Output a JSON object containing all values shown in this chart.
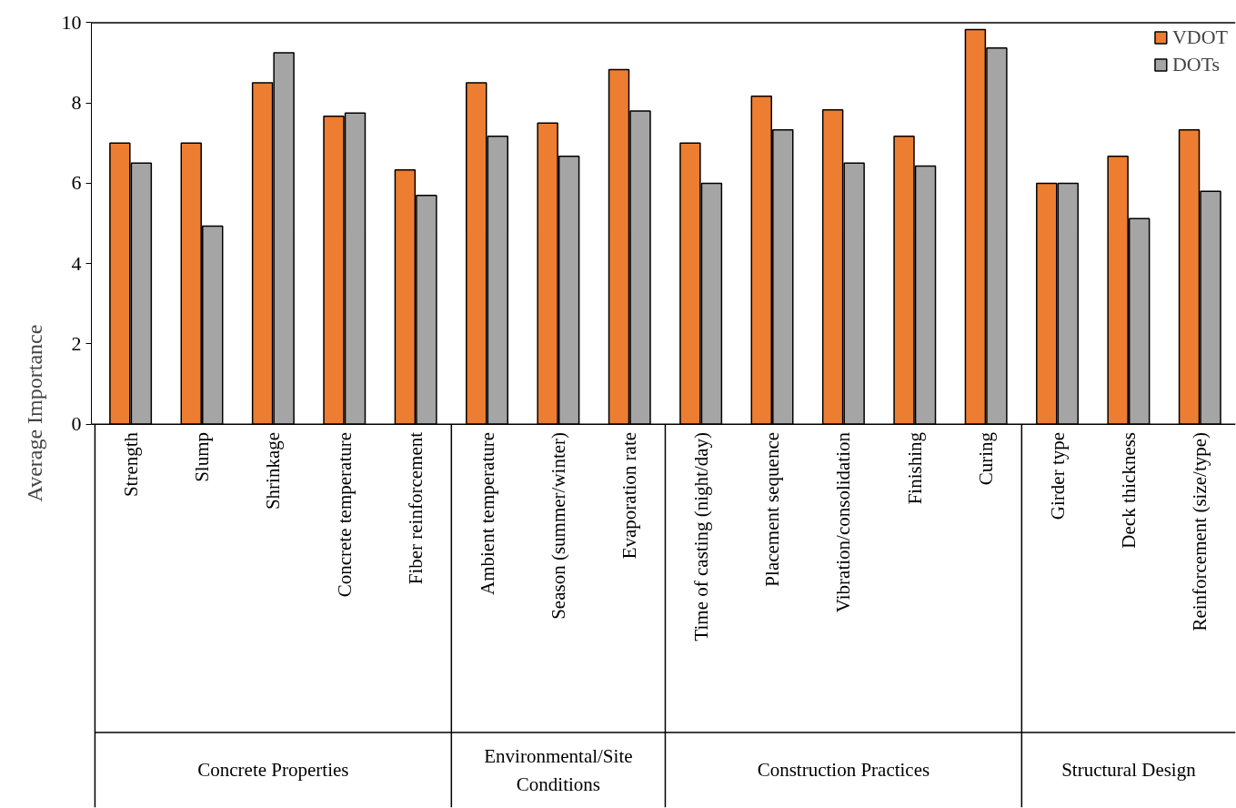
{
  "chart_data": {
    "type": "bar",
    "ylabel": "Average Importance",
    "categories": [
      "Strength",
      "Slump",
      "Shrinkage",
      "Concrete temperature",
      "Fiber reinforcement",
      "Ambient temperature",
      "Season (summer/winter)",
      "Evaporation rate",
      "Time of casting (night/day)",
      "Placement sequence",
      "Vibration/consolidation",
      "Finishing",
      "Curing",
      "Girder type",
      "Deck thickness",
      "Reinforcement (size/type)"
    ],
    "series": [
      {
        "name": "VDOT",
        "color": "#ed7d31",
        "values": [
          7.0,
          7.0,
          8.5,
          7.67,
          6.33,
          8.5,
          7.5,
          8.83,
          7.0,
          8.17,
          7.83,
          7.17,
          9.83,
          6.0,
          6.67,
          7.33
        ]
      },
      {
        "name": "DOTs",
        "color": "#a5a5a5",
        "values": [
          6.5,
          4.93,
          9.25,
          7.75,
          5.7,
          7.17,
          6.67,
          7.8,
          6.0,
          7.33,
          6.5,
          6.43,
          9.37,
          6.0,
          5.12,
          5.8
        ]
      }
    ],
    "annotations": [
      "Concrete Properties",
      "Environmental/Site\nConditions",
      "Construction Practices",
      "Structural Design"
    ],
    "ylim": [
      0,
      10
    ],
    "yticks": [
      0,
      2,
      4,
      6,
      8,
      10
    ],
    "grid": false,
    "legend": "top right"
  }
}
